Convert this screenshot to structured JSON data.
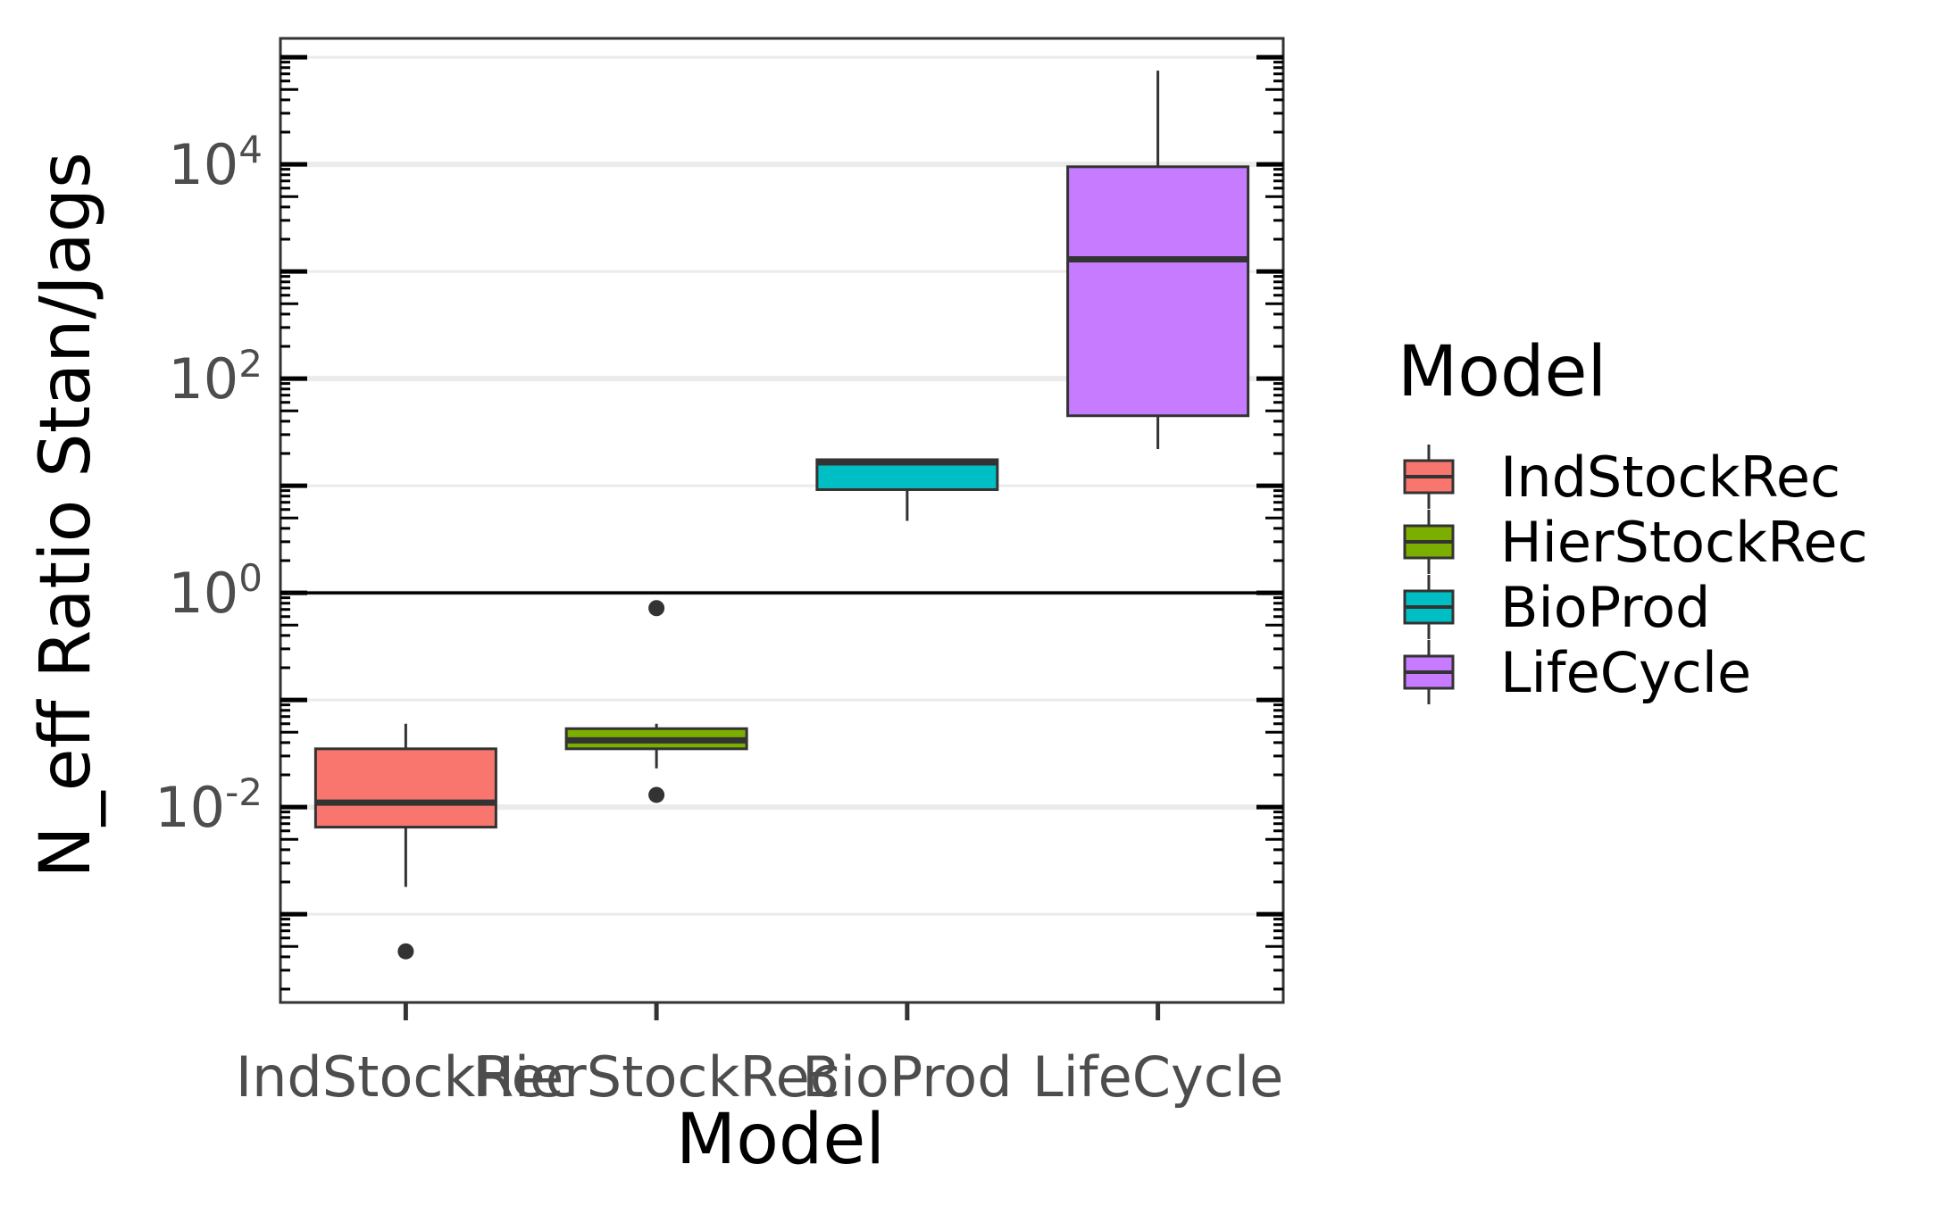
{
  "chart_data": {
    "type": "box",
    "xlabel": "Model",
    "ylabel": "N_eff Ratio Stan/Jags",
    "y_scale": "log10",
    "ylim": [
      0.00015,
      150000
    ],
    "y_ticks": [
      0.01,
      1,
      100,
      10000
    ],
    "y_tick_labels": [
      {
        "base": "10",
        "exp": "-2"
      },
      {
        "base": "10",
        "exp": "0"
      },
      {
        "base": "10",
        "exp": "2"
      },
      {
        "base": "10",
        "exp": "4"
      }
    ],
    "reference_line": 1,
    "grid": true,
    "categories": [
      "IndStockRec",
      "HierStockRec",
      "BioProd",
      "LifeCycle"
    ],
    "boxes": [
      {
        "name": "IndStockRec",
        "color": "#F8766D",
        "whisker_low": 0.0018,
        "q1": 0.0065,
        "median": 0.011,
        "q3": 0.035,
        "whisker_high": 0.06,
        "outliers": [
          0.00045
        ]
      },
      {
        "name": "HierStockRec",
        "color": "#7CAE00",
        "whisker_low": 0.023,
        "q1": 0.035,
        "median": 0.042,
        "q3": 0.054,
        "whisker_high": 0.06,
        "outliers": [
          0.72,
          0.013
        ]
      },
      {
        "name": "BioProd",
        "color": "#00BFC4",
        "whisker_low": 4.7,
        "q1": 9.2,
        "median": 16.5,
        "q3": 17.5,
        "whisker_high": 17.5,
        "outliers": []
      },
      {
        "name": "LifeCycle",
        "color": "#C77CFF",
        "whisker_low": 22,
        "q1": 45,
        "median": 1300,
        "q3": 9500,
        "whisker_high": 75000,
        "outliers": []
      }
    ],
    "legend": {
      "title": "Model",
      "position": "right",
      "entries": [
        "IndStockRec",
        "HierStockRec",
        "BioProd",
        "LifeCycle"
      ]
    }
  }
}
